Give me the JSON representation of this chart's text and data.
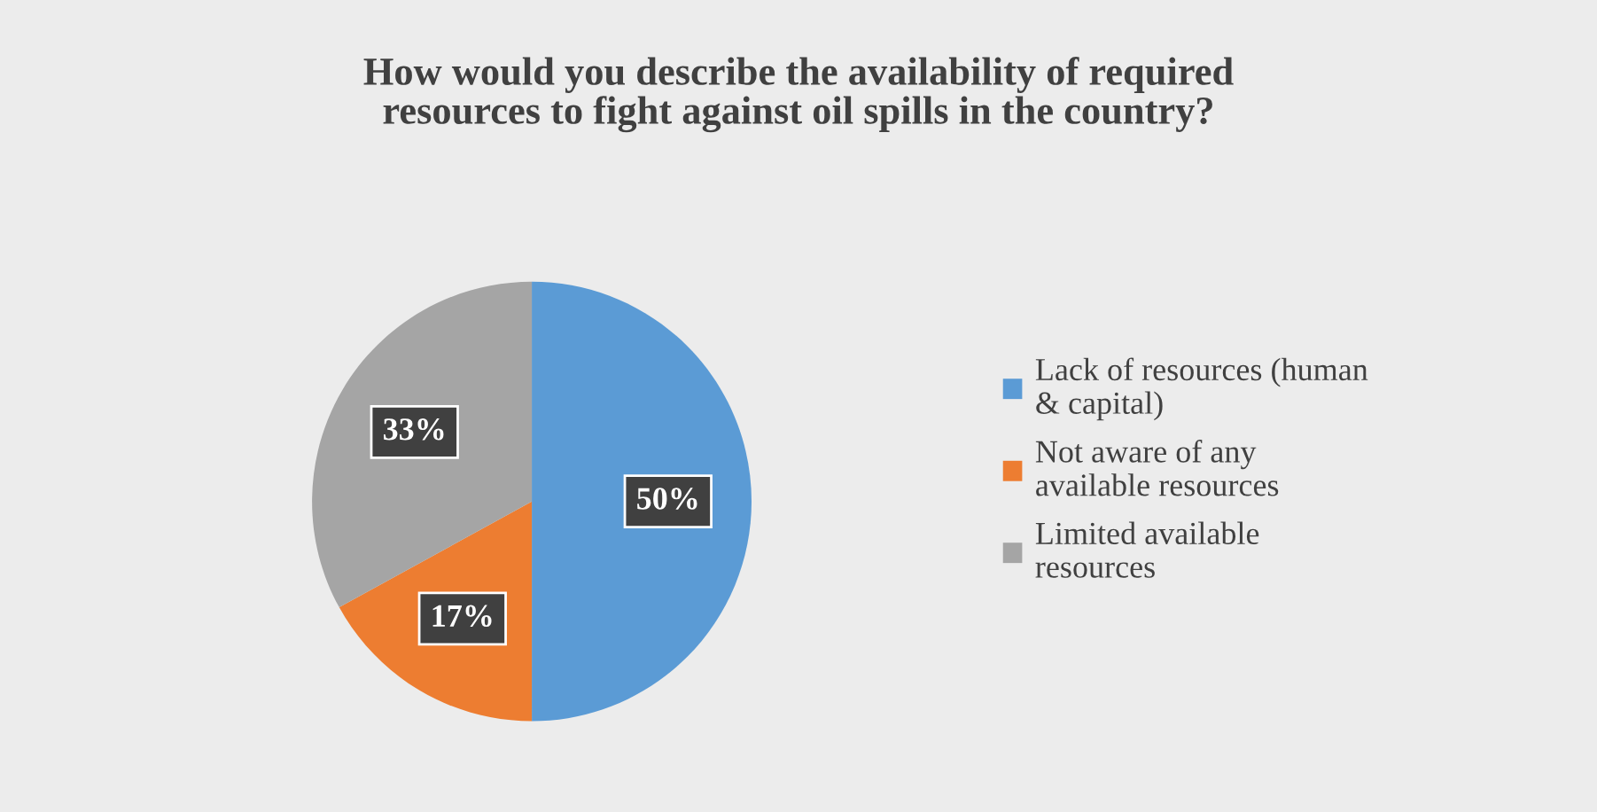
{
  "chart_data": {
    "type": "pie",
    "title": "How would you describe the availability of required resources to fight against oil spills in the country?",
    "categories": [
      "Lack of resources (human & capital)",
      "Not aware of any available resources",
      "Limited available resources"
    ],
    "values": [
      50,
      17,
      33
    ],
    "colors": [
      "#5b9bd5",
      "#ed7d31",
      "#a5a5a5"
    ],
    "value_labels": [
      "50%",
      "17%",
      "33%"
    ],
    "legend": "right"
  }
}
